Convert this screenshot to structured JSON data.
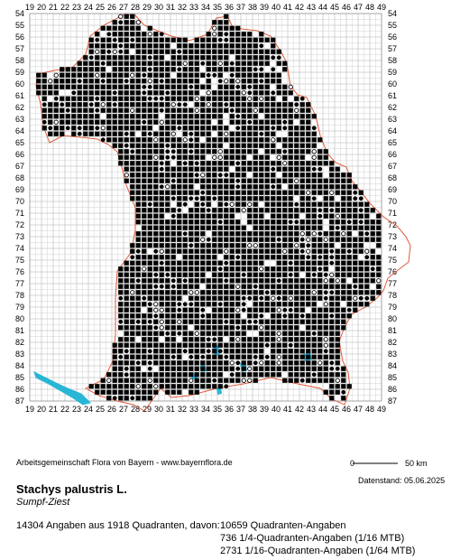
{
  "map": {
    "x_labels": [
      "19",
      "20",
      "21",
      "22",
      "23",
      "24",
      "25",
      "26",
      "27",
      "28",
      "29",
      "30",
      "31",
      "32",
      "33",
      "34",
      "35",
      "36",
      "37",
      "38",
      "39",
      "40",
      "41",
      "42",
      "43",
      "44",
      "45",
      "46",
      "47",
      "48",
      "49"
    ],
    "y_labels": [
      "54",
      "55",
      "56",
      "57",
      "58",
      "59",
      "60",
      "61",
      "62",
      "63",
      "64",
      "65",
      "66",
      "67",
      "68",
      "69",
      "70",
      "71",
      "72",
      "73",
      "74",
      "75",
      "76",
      "77",
      "78",
      "79",
      "80",
      "81",
      "82",
      "83",
      "84",
      "85",
      "86",
      "87"
    ],
    "colors": {
      "grid": "#c8c8c8",
      "border": "#e05a3a",
      "water": "#29b6d6",
      "dot": "#000000"
    }
  },
  "scale": {
    "start": "0",
    "end": "50 km"
  },
  "footer": {
    "credit": "Arbeitsgemeinschaft Flora von Bayern - www.bayernflora.de",
    "date": "Datenstand: 05.06.2025",
    "species": "Stachys palustris L.",
    "common_name": "Sumpf-Ziest",
    "summary": "14304 Angaben aus 1918 Quadranten, davon:",
    "stats": [
      "10659 Quadranten-Angaben",
      "736 1/4-Quadranten-Angaben (1/16 MTB)",
      "2731 1/16-Quadranten-Angaben (1/64 MTB)"
    ]
  }
}
